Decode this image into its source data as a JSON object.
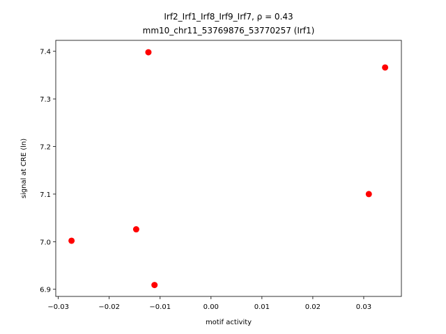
{
  "chart_data": {
    "type": "scatter",
    "title": "Irf2_Irf1_Irf8_Irf9_Irf7, ρ = 0.43",
    "subtitle": "mm10_chr11_53769876_53770257 (Irf1)",
    "x_label": "motif activity",
    "y_label": "signal at CRE (ln)",
    "color": "#ff0000",
    "x": [
      -0.0123,
      0.0342,
      0.031,
      -0.0147,
      -0.0274,
      -0.0111
    ],
    "y": [
      7.398,
      7.366,
      7.1,
      7.026,
      7.002,
      6.909
    ],
    "xlim": [
      -0.0305,
      0.0374
    ],
    "ylim": [
      6.885,
      7.423
    ],
    "xticks": [
      {
        "value": -0.03,
        "label": "−0.03"
      },
      {
        "value": -0.02,
        "label": "−0.02"
      },
      {
        "value": -0.01,
        "label": "−0.01"
      },
      {
        "value": 0,
        "label": "0.00"
      },
      0.01,
      0.02,
      0.03
    ],
    "yticks": [
      6.9,
      {
        "value": 7,
        "label": "7.0"
      },
      7.1,
      7.2,
      7.3,
      7.4
    ]
  }
}
